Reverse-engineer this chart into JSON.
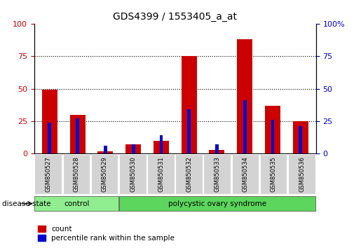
{
  "title": "GDS4399 / 1553405_a_at",
  "samples": [
    "GSM850527",
    "GSM850528",
    "GSM850529",
    "GSM850530",
    "GSM850531",
    "GSM850532",
    "GSM850533",
    "GSM850534",
    "GSM850535",
    "GSM850536"
  ],
  "count_values": [
    49,
    30,
    2,
    7,
    10,
    75,
    3,
    88,
    37,
    25
  ],
  "percentile_values": [
    24,
    27,
    6,
    7,
    14,
    34,
    7,
    41,
    26,
    21
  ],
  "groups": [
    {
      "label": "control",
      "indices": [
        0,
        1,
        2
      ],
      "color": "#90ee90"
    },
    {
      "label": "polycystic ovary syndrome",
      "indices": [
        3,
        4,
        5,
        6,
        7,
        8,
        9
      ],
      "color": "#5cd65c"
    }
  ],
  "disease_state_label": "disease state",
  "ylim_left": [
    0,
    100
  ],
  "ylim_right": [
    0,
    100
  ],
  "yticks": [
    0,
    25,
    50,
    75,
    100
  ],
  "left_axis_color": "#cc0000",
  "right_axis_color": "#0000cc",
  "bar_red_color": "#cc0000",
  "bar_blue_color": "#0000cc",
  "red_bar_width": 0.55,
  "blue_bar_width": 0.12,
  "grid_color": "black",
  "background_color": "#ffffff",
  "plot_bg_color": "#ffffff",
  "legend_count_label": "count",
  "legend_percentile_label": "percentile rank within the sample",
  "tick_label_bg": "#d3d3d3",
  "tick_label_bg_border": "#aaaaaa"
}
